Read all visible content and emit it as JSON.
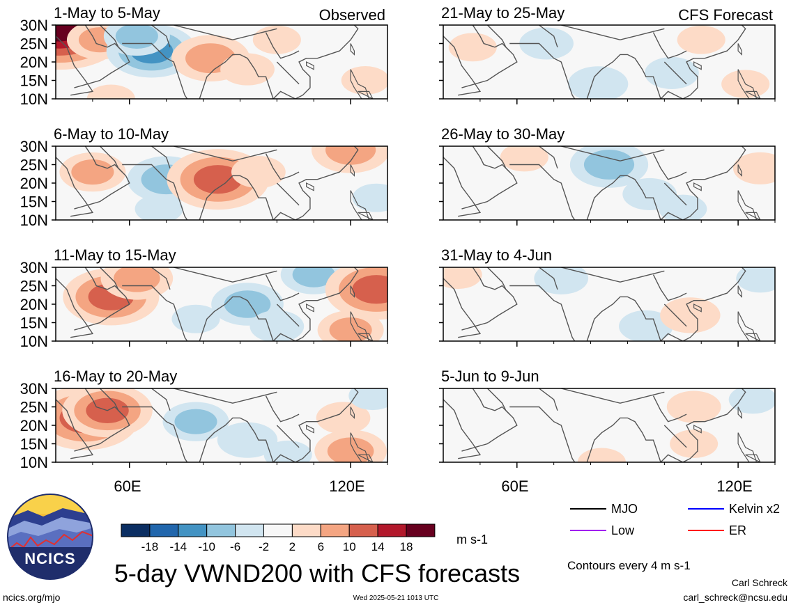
{
  "chart_data": {
    "type": "heatmap",
    "title": "5-day VWND200 with CFS forecasts",
    "unit_label": "m s-1",
    "contour_note": "Contours every 4 m s-1",
    "source_labels": {
      "observed": "Observed",
      "forecast": "CFS Forecast"
    },
    "y_ticks": [
      "30N",
      "25N",
      "20N",
      "15N",
      "10N"
    ],
    "x_ticks": [
      "60E",
      "120E"
    ],
    "lon_range": [
      40,
      130
    ],
    "lat_range": [
      10,
      30
    ],
    "colorbar": {
      "labels": [
        "-18",
        "-14",
        "-10",
        "-6",
        "-2",
        "2",
        "6",
        "10",
        "14",
        "18"
      ],
      "colors": [
        "#0b2e62",
        "#2166ac",
        "#4393c3",
        "#92c5de",
        "#d1e5f0",
        "#f7f7f7",
        "#fddbc7",
        "#f4a582",
        "#d6604d",
        "#b2182b",
        "#67001f"
      ]
    },
    "panels": [
      {
        "title": "1-May to 5-May",
        "source": "observed",
        "anomalies": [
          {
            "lon": 41,
            "lat": 29,
            "value": 18
          },
          {
            "lon": 52,
            "lat": 26,
            "value": 6
          },
          {
            "lon": 66,
            "lat": 23,
            "value": -10
          },
          {
            "lon": 62,
            "lat": 27,
            "value": -6
          },
          {
            "lon": 82,
            "lat": 21,
            "value": 8
          },
          {
            "lon": 92,
            "lat": 18,
            "value": 4
          },
          {
            "lon": 100,
            "lat": 26,
            "value": 3
          },
          {
            "lon": 55,
            "lat": 10,
            "value": 3
          },
          {
            "lon": 124,
            "lat": 15,
            "value": 3
          }
        ]
      },
      {
        "title": "6-May to 10-May",
        "source": "observed",
        "anomalies": [
          {
            "lon": 50,
            "lat": 23,
            "value": 6
          },
          {
            "lon": 70,
            "lat": 21,
            "value": -8
          },
          {
            "lon": 68,
            "lat": 13,
            "value": -3
          },
          {
            "lon": 84,
            "lat": 21,
            "value": 12
          },
          {
            "lon": 95,
            "lat": 23,
            "value": 4
          },
          {
            "lon": 120,
            "lat": 29,
            "value": 8
          },
          {
            "lon": 127,
            "lat": 16,
            "value": -3
          }
        ]
      },
      {
        "title": "11-May to 15-May",
        "source": "observed",
        "anomalies": [
          {
            "lon": 55,
            "lat": 22,
            "value": 11
          },
          {
            "lon": 62,
            "lat": 27,
            "value": 7
          },
          {
            "lon": 78,
            "lat": 16,
            "value": -3
          },
          {
            "lon": 92,
            "lat": 20,
            "value": -7
          },
          {
            "lon": 110,
            "lat": 28,
            "value": -6
          },
          {
            "lon": 100,
            "lat": 14,
            "value": -4
          },
          {
            "lon": 127,
            "lat": 24,
            "value": 12
          },
          {
            "lon": 120,
            "lat": 13,
            "value": 6
          }
        ]
      },
      {
        "title": "16-May to 20-May",
        "source": "observed",
        "anomalies": [
          {
            "lon": 48,
            "lat": 22,
            "value": 13
          },
          {
            "lon": 54,
            "lat": 24,
            "value": 10
          },
          {
            "lon": 78,
            "lat": 21,
            "value": -6
          },
          {
            "lon": 92,
            "lat": 16,
            "value": -5
          },
          {
            "lon": 103,
            "lat": 12,
            "value": -3
          },
          {
            "lon": 118,
            "lat": 22,
            "value": 4
          },
          {
            "lon": 120,
            "lat": 13,
            "value": 7
          },
          {
            "lon": 126,
            "lat": 28,
            "value": -3
          }
        ]
      },
      {
        "title": "21-May to 25-May",
        "source": "forecast",
        "anomalies": [
          {
            "lon": 48,
            "lat": 24,
            "value": 3
          },
          {
            "lon": 68,
            "lat": 25,
            "value": -4
          },
          {
            "lon": 82,
            "lat": 14,
            "value": -5
          },
          {
            "lon": 102,
            "lat": 17,
            "value": -4
          },
          {
            "lon": 110,
            "lat": 26,
            "value": 3
          },
          {
            "lon": 122,
            "lat": 14,
            "value": 3
          }
        ]
      },
      {
        "title": "26-May to 30-May",
        "source": "forecast",
        "anomalies": [
          {
            "lon": 62,
            "lat": 27,
            "value": 3
          },
          {
            "lon": 85,
            "lat": 25,
            "value": -8
          },
          {
            "lon": 96,
            "lat": 17,
            "value": -4
          },
          {
            "lon": 105,
            "lat": 13,
            "value": -3
          },
          {
            "lon": 126,
            "lat": 24,
            "value": 4
          }
        ]
      },
      {
        "title": "31-May to 4-Jun",
        "source": "forecast",
        "anomalies": [
          {
            "lon": 44,
            "lat": 28,
            "value": 3
          },
          {
            "lon": 72,
            "lat": 27,
            "value": -4
          },
          {
            "lon": 95,
            "lat": 14,
            "value": -4
          },
          {
            "lon": 107,
            "lat": 17,
            "value": 5
          },
          {
            "lon": 126,
            "lat": 27,
            "value": -3
          }
        ]
      },
      {
        "title": "5-Jun to 9-Jun",
        "source": "forecast",
        "anomalies": [
          {
            "lon": 108,
            "lat": 25,
            "value": 4
          },
          {
            "lon": 124,
            "lat": 27,
            "value": -3
          },
          {
            "lon": 108,
            "lat": 15,
            "value": 3
          },
          {
            "lon": 83,
            "lat": 10,
            "value": 3
          }
        ]
      }
    ],
    "legend": [
      {
        "name": "MJO",
        "color": "#000000"
      },
      {
        "name": "Kelvin x2",
        "color": "#0000ff"
      },
      {
        "name": "Low",
        "color": "#a020f0"
      },
      {
        "name": "ER",
        "color": "#ff0000"
      }
    ],
    "logo_text": "NCICS",
    "footer_left": "ncics.org/mjo",
    "footer_center": "Wed 2025-05-21 1013 UTC",
    "credit_name": "Carl Schreck",
    "credit_email": "carl_schreck@ncsu.edu",
    "grid": false
  }
}
